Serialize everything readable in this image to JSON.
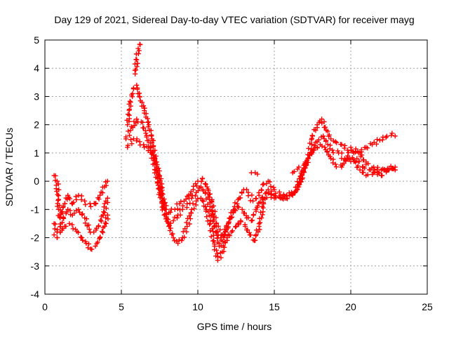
{
  "chart_data": {
    "type": "scatter",
    "title": "Day 129 of 2021, Sidereal Day-to-day VTEC variation (SDTVAR) for receiver mayg",
    "xlabel": "GPS time / hours",
    "ylabel": "SDTVAR / TECUs",
    "xlim": [
      0,
      25
    ],
    "ylim": [
      -4,
      5
    ],
    "xticks": [
      "0",
      "5",
      "10",
      "15",
      "20",
      "25"
    ],
    "yticks": [
      "-4",
      "-3",
      "-2",
      "-1",
      "0",
      "1",
      "2",
      "3",
      "4",
      "5"
    ],
    "grid": true,
    "marker": "+",
    "series": [
      {
        "name": "track-a",
        "color": "#ff0000",
        "points": [
          [
            0.6,
            0.2
          ],
          [
            0.8,
            0.0
          ],
          [
            0.9,
            -1.0
          ],
          [
            1.0,
            -1.3
          ],
          [
            1.2,
            -0.9
          ],
          [
            1.5,
            -0.5
          ],
          [
            1.8,
            -0.8
          ],
          [
            2.2,
            -0.5
          ],
          [
            2.6,
            -0.7
          ],
          [
            3.0,
            -0.9
          ],
          [
            3.3,
            -0.8
          ],
          [
            3.6,
            -0.5
          ],
          [
            3.9,
            -0.2
          ],
          [
            4.1,
            0.0
          ],
          [
            5.4,
            2.0
          ],
          [
            5.6,
            2.8
          ],
          [
            5.8,
            3.3
          ],
          [
            6.0,
            3.4
          ],
          [
            6.2,
            3.0
          ],
          [
            6.5,
            2.5
          ],
          [
            6.8,
            2.0
          ],
          [
            7.0,
            1.5
          ],
          [
            7.3,
            0.5
          ],
          [
            7.6,
            -0.5
          ],
          [
            7.9,
            -1.0
          ],
          [
            8.2,
            -1.1
          ],
          [
            8.5,
            -1.0
          ],
          [
            8.8,
            -0.8
          ],
          [
            9.1,
            -0.7
          ],
          [
            9.4,
            -0.5
          ],
          [
            9.7,
            -0.3
          ],
          [
            10.0,
            0.0
          ],
          [
            10.3,
            0.1
          ],
          [
            10.6,
            -0.2
          ],
          [
            10.9,
            -0.7
          ],
          [
            11.2,
            -1.5
          ],
          [
            11.5,
            -2.0
          ],
          [
            11.8,
            -1.8
          ],
          [
            12.1,
            -1.3
          ],
          [
            12.4,
            -0.9
          ],
          [
            12.7,
            -0.6
          ],
          [
            13.0,
            -0.3
          ],
          [
            13.3,
            -0.4
          ],
          [
            13.6,
            -0.7
          ],
          [
            14.0,
            -0.5
          ],
          [
            14.3,
            -0.1
          ],
          [
            14.6,
            0.0
          ],
          [
            15.0,
            -0.3
          ],
          [
            15.4,
            -0.5
          ],
          [
            15.8,
            -0.6
          ],
          [
            16.2,
            -0.5
          ],
          [
            16.6,
            -0.2
          ],
          [
            16.9,
            0.4
          ],
          [
            17.2,
            0.8
          ],
          [
            17.5,
            1.6
          ],
          [
            17.8,
            2.0
          ],
          [
            18.1,
            2.2
          ],
          [
            18.4,
            1.8
          ],
          [
            18.7,
            1.5
          ],
          [
            19.0,
            1.4
          ],
          [
            19.4,
            1.3
          ],
          [
            19.8,
            1.1
          ],
          [
            20.2,
            1.0
          ],
          [
            20.6,
            1.0
          ],
          [
            21.0,
            0.6
          ],
          [
            21.5,
            0.5
          ],
          [
            22.0,
            0.4
          ],
          [
            22.5,
            0.45
          ],
          [
            22.9,
            0.4
          ]
        ]
      },
      {
        "name": "track-b",
        "color": "#ff0000",
        "points": [
          [
            0.6,
            -1.5
          ],
          [
            0.8,
            -1.8
          ],
          [
            1.0,
            -1.6
          ],
          [
            1.2,
            -1.3
          ],
          [
            1.5,
            -1.0
          ],
          [
            1.8,
            -1.2
          ],
          [
            2.2,
            -1.0
          ],
          [
            2.6,
            -1.3
          ],
          [
            2.9,
            -1.7
          ],
          [
            3.2,
            -1.8
          ],
          [
            3.5,
            -1.6
          ],
          [
            3.8,
            -1.2
          ],
          [
            4.1,
            -0.6
          ],
          [
            5.3,
            1.5
          ],
          [
            5.6,
            1.8
          ],
          [
            6.0,
            2.2
          ],
          [
            6.3,
            2.1
          ],
          [
            6.6,
            1.7
          ],
          [
            6.9,
            1.2
          ],
          [
            7.2,
            0.4
          ],
          [
            7.5,
            -0.4
          ],
          [
            7.8,
            -1.2
          ],
          [
            8.1,
            -1.5
          ],
          [
            8.4,
            -1.4
          ],
          [
            8.7,
            -1.2
          ],
          [
            9.0,
            -1.0
          ],
          [
            9.3,
            -0.8
          ],
          [
            9.6,
            -0.6
          ],
          [
            9.9,
            -0.4
          ],
          [
            10.2,
            -0.2
          ],
          [
            10.5,
            -0.4
          ],
          [
            10.8,
            -0.9
          ],
          [
            11.1,
            -1.6
          ],
          [
            11.4,
            -2.3
          ],
          [
            11.7,
            -2.0
          ],
          [
            12.0,
            -1.5
          ],
          [
            12.3,
            -1.1
          ],
          [
            12.6,
            -0.9
          ],
          [
            12.9,
            -1.0
          ],
          [
            13.2,
            -1.3
          ],
          [
            13.5,
            -1.4
          ],
          [
            13.8,
            -1.0
          ],
          [
            14.2,
            -0.6
          ],
          [
            14.6,
            -0.3
          ],
          [
            15.0,
            -0.5
          ],
          [
            15.4,
            -0.6
          ],
          [
            15.8,
            -0.5
          ],
          [
            16.3,
            -0.4
          ],
          [
            16.7,
            0.1
          ],
          [
            17.0,
            0.6
          ],
          [
            17.4,
            1.0
          ],
          [
            17.8,
            1.4
          ],
          [
            18.2,
            1.6
          ],
          [
            18.5,
            1.3
          ],
          [
            18.8,
            1.1
          ],
          [
            19.2,
            1.0
          ],
          [
            19.6,
            0.8
          ],
          [
            20.0,
            0.7
          ],
          [
            20.4,
            0.8
          ],
          [
            20.8,
            0.5
          ],
          [
            21.3,
            0.4
          ],
          [
            21.8,
            0.3
          ],
          [
            22.4,
            0.45
          ],
          [
            22.9,
            0.5
          ]
        ]
      },
      {
        "name": "track-c",
        "color": "#ff0000",
        "points": [
          [
            0.6,
            -1.9
          ],
          [
            0.8,
            -2.0
          ],
          [
            1.0,
            -1.8
          ],
          [
            1.3,
            -1.6
          ],
          [
            1.6,
            -1.5
          ],
          [
            2.0,
            -1.7
          ],
          [
            2.4,
            -2.0
          ],
          [
            2.7,
            -2.2
          ],
          [
            3.0,
            -2.4
          ],
          [
            3.3,
            -2.3
          ],
          [
            3.6,
            -2.0
          ],
          [
            3.9,
            -1.6
          ],
          [
            4.1,
            -1.2
          ],
          [
            5.4,
            1.2
          ],
          [
            5.8,
            1.5
          ],
          [
            6.2,
            1.4
          ],
          [
            6.5,
            1.2
          ],
          [
            6.9,
            1.1
          ],
          [
            7.2,
            0.8
          ],
          [
            7.5,
            0.2
          ],
          [
            7.8,
            -0.8
          ],
          [
            8.1,
            -1.6
          ],
          [
            8.4,
            -2.0
          ],
          [
            8.7,
            -2.2
          ],
          [
            9.0,
            -2.0
          ],
          [
            9.3,
            -1.6
          ],
          [
            9.6,
            -1.0
          ],
          [
            9.9,
            -0.7
          ],
          [
            10.2,
            -0.6
          ],
          [
            10.5,
            -0.9
          ],
          [
            10.8,
            -1.5
          ],
          [
            11.1,
            -2.3
          ],
          [
            11.3,
            -2.8
          ],
          [
            11.6,
            -2.5
          ],
          [
            11.9,
            -2.0
          ],
          [
            12.2,
            -1.8
          ],
          [
            12.5,
            -1.6
          ],
          [
            12.8,
            -1.4
          ],
          [
            13.1,
            -1.6
          ],
          [
            13.4,
            -1.9
          ],
          [
            13.7,
            -2.1
          ],
          [
            14.0,
            -1.6
          ],
          [
            14.3,
            -0.8
          ],
          [
            14.6,
            -0.4
          ],
          [
            15.0,
            -0.6
          ],
          [
            15.5,
            -0.6
          ],
          [
            16.0,
            -0.5
          ],
          [
            16.5,
            -0.3
          ],
          [
            16.8,
            0.2
          ],
          [
            17.2,
            0.8
          ],
          [
            17.6,
            1.1
          ],
          [
            18.0,
            1.3
          ],
          [
            18.3,
            1.2
          ],
          [
            18.7,
            0.8
          ],
          [
            19.0,
            0.6
          ],
          [
            19.4,
            0.5
          ],
          [
            19.8,
            0.9
          ],
          [
            20.2,
            0.7
          ],
          [
            20.6,
            0.4
          ],
          [
            21.0,
            0.2
          ],
          [
            21.5,
            0.3
          ],
          [
            22.0,
            0.2
          ],
          [
            22.5,
            0.4
          ],
          [
            22.9,
            0.4
          ]
        ]
      },
      {
        "name": "track-d",
        "color": "#ff0000",
        "points": [
          [
            5.9,
            3.8
          ],
          [
            6.0,
            4.3
          ],
          [
            6.1,
            4.7
          ],
          [
            6.2,
            4.85
          ],
          [
            13.5,
            0.3
          ],
          [
            13.9,
            0.25
          ],
          [
            16.2,
            0.3
          ],
          [
            16.6,
            0.5
          ],
          [
            20.0,
            1.2
          ],
          [
            20.5,
            1.0
          ],
          [
            21.0,
            1.2
          ],
          [
            21.4,
            1.3
          ],
          [
            21.9,
            1.45
          ],
          [
            22.3,
            1.55
          ],
          [
            22.7,
            1.7
          ],
          [
            22.9,
            1.6
          ]
        ]
      }
    ]
  }
}
